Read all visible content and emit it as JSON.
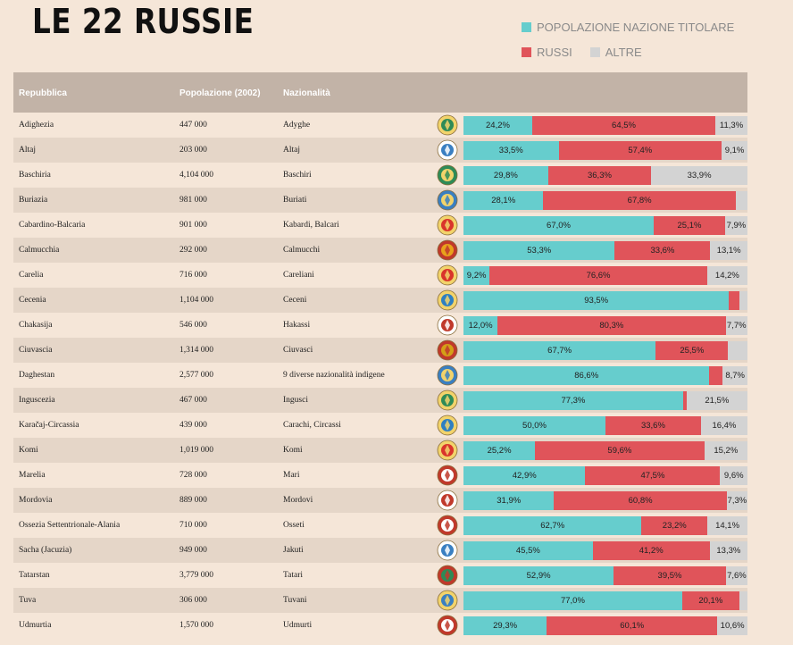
{
  "title": "LE 22 RUSSIE",
  "legend": {
    "titular": "POPOLAZIONE NAZIONE TITOLARE",
    "russians": "RUSSI",
    "others": "ALTRE"
  },
  "colors": {
    "titular": "#66cdcd",
    "russians": "#e0545a",
    "others": "#d3d3d3"
  },
  "headers": {
    "republic": "Repubblica",
    "population": "Popolazione (2002)",
    "nationality": "Nazionalità"
  },
  "chart_data": {
    "type": "bar",
    "stacked": true,
    "orientation": "horizontal",
    "categories": [
      "Adighezia",
      "Altaj",
      "Baschiria",
      "Buriazia",
      "Cabardino-Balcaria",
      "Calmucchia",
      "Carelia",
      "Cecenia",
      "Chakasija",
      "Ciuvascia",
      "Daghestan",
      "Inguscezia",
      "Karačaj-Circassia",
      "Komi",
      "Marelia",
      "Mordovia",
      "Ossezia Settentrionale-Alania",
      "Sacha (Jacuzia)",
      "Tatarstan",
      "Tuva",
      "Udmurtia"
    ],
    "series": [
      {
        "name": "POPOLAZIONE NAZIONE TITOLARE",
        "values": [
          24.2,
          33.5,
          29.8,
          28.1,
          67.0,
          53.3,
          9.2,
          93.5,
          12.0,
          67.7,
          86.6,
          77.3,
          50.0,
          25.2,
          42.9,
          31.9,
          62.7,
          45.5,
          52.9,
          77.0,
          29.3
        ]
      },
      {
        "name": "RUSSI",
        "values": [
          64.5,
          57.4,
          36.3,
          67.8,
          25.1,
          33.6,
          76.6,
          3.7,
          80.3,
          25.5,
          4.7,
          1.2,
          33.6,
          59.6,
          47.5,
          60.8,
          23.2,
          41.2,
          39.5,
          20.1,
          60.1
        ]
      },
      {
        "name": "ALTRE",
        "values": [
          11.3,
          9.1,
          33.9,
          4.1,
          7.9,
          13.1,
          14.2,
          2.8,
          7.7,
          6.8,
          8.7,
          21.5,
          16.4,
          15.2,
          9.6,
          7.3,
          14.1,
          13.3,
          7.6,
          2.9,
          10.6
        ]
      }
    ],
    "xlim": [
      0,
      100
    ]
  },
  "rows": [
    {
      "republic": "Adighezia",
      "population": "447 000",
      "nationality": "Adyghe",
      "icon": "adygea-emblem-icon",
      "labels": [
        "24,2%",
        "64,5%",
        "11,3%"
      ]
    },
    {
      "republic": "Altaj",
      "population": "203 000",
      "nationality": "Altaj",
      "icon": "altai-emblem-icon",
      "labels": [
        "33,5%",
        "57,4%",
        "9,1%"
      ]
    },
    {
      "republic": "Baschiria",
      "population": "4,104 000",
      "nationality": "Baschiri",
      "icon": "bashkortostan-emblem-icon",
      "labels": [
        "29,8%",
        "36,3%",
        "33,9%"
      ]
    },
    {
      "republic": "Buriazia",
      "population": "981 000",
      "nationality": "Buriati",
      "icon": "buryatia-emblem-icon",
      "labels": [
        "28,1%",
        "67,8%",
        ""
      ]
    },
    {
      "republic": "Cabardino-Balcaria",
      "population": "901 000",
      "nationality": "Kabardi, Balcari",
      "icon": "kabardino-balkaria-emblem-icon",
      "labels": [
        "67,0%",
        "25,1%",
        "7,9%"
      ]
    },
    {
      "republic": "Calmucchia",
      "population": "292 000",
      "nationality": "Calmucchi",
      "icon": "kalmykia-emblem-icon",
      "labels": [
        "53,3%",
        "33,6%",
        "13,1%"
      ]
    },
    {
      "republic": "Carelia",
      "population": "716 000",
      "nationality": "Careliani",
      "icon": "karelia-emblem-icon",
      "labels": [
        "9,2%",
        "76,6%",
        "14,2%"
      ]
    },
    {
      "republic": "Cecenia",
      "population": "1,104 000",
      "nationality": "Ceceni",
      "icon": "chechnya-emblem-icon",
      "labels": [
        "93,5%",
        "",
        ""
      ]
    },
    {
      "republic": "Chakasija",
      "population": "546 000",
      "nationality": "Hakassi",
      "icon": "khakassia-emblem-icon",
      "labels": [
        "12,0%",
        "80,3%",
        "7,7%"
      ]
    },
    {
      "republic": "Ciuvascia",
      "population": "1,314 000",
      "nationality": "Ciuvasci",
      "icon": "chuvashia-emblem-icon",
      "labels": [
        "67,7%",
        "25,5%",
        ""
      ]
    },
    {
      "republic": "Daghestan",
      "population": "2,577 000",
      "nationality": "9 diverse nazionalità indigene",
      "icon": "dagestan-emblem-icon",
      "labels": [
        "86,6%",
        "",
        "8,7%"
      ]
    },
    {
      "republic": "Inguscezia",
      "population": "467 000",
      "nationality": "Ingusci",
      "icon": "ingushetia-emblem-icon",
      "labels": [
        "77,3%",
        "",
        "21,5%"
      ]
    },
    {
      "republic": "Karačaj-Circassia",
      "population": "439 000",
      "nationality": "Carachi, Circassi",
      "icon": "karachay-cherkessia-emblem-icon",
      "labels": [
        "50,0%",
        "33,6%",
        "16,4%"
      ]
    },
    {
      "republic": "Komi",
      "population": "1,019 000",
      "nationality": "Komi",
      "icon": "komi-emblem-icon",
      "labels": [
        "25,2%",
        "59,6%",
        "15,2%"
      ]
    },
    {
      "republic": "Marelia",
      "population": "728 000",
      "nationality": "Mari",
      "icon": "mari-el-emblem-icon",
      "labels": [
        "42,9%",
        "47,5%",
        "9,6%"
      ]
    },
    {
      "republic": "Mordovia",
      "population": "889 000",
      "nationality": "Mordovi",
      "icon": "mordovia-emblem-icon",
      "labels": [
        "31,9%",
        "60,8%",
        "7,3%"
      ]
    },
    {
      "republic": "Ossezia Settentrionale-Alania",
      "population": "710 000",
      "nationality": "Osseti",
      "icon": "north-ossetia-emblem-icon",
      "labels": [
        "62,7%",
        "23,2%",
        "14,1%"
      ]
    },
    {
      "republic": "Sacha (Jacuzia)",
      "population": "949 000",
      "nationality": "Jakuti",
      "icon": "sakha-emblem-icon",
      "labels": [
        "45,5%",
        "41,2%",
        "13,3%"
      ]
    },
    {
      "republic": "Tatarstan",
      "population": "3,779 000",
      "nationality": "Tatari",
      "icon": "tatarstan-emblem-icon",
      "labels": [
        "52,9%",
        "39,5%",
        "7,6%"
      ]
    },
    {
      "republic": "Tuva",
      "population": "306 000",
      "nationality": "Tuvani",
      "icon": "tuva-emblem-icon",
      "labels": [
        "77,0%",
        "20,1%",
        ""
      ]
    },
    {
      "republic": "Udmurtia",
      "population": "1,570 000",
      "nationality": "Udmurti",
      "icon": "udmurtia-emblem-icon",
      "labels": [
        "29,3%",
        "60,1%",
        "10,6%"
      ]
    }
  ]
}
